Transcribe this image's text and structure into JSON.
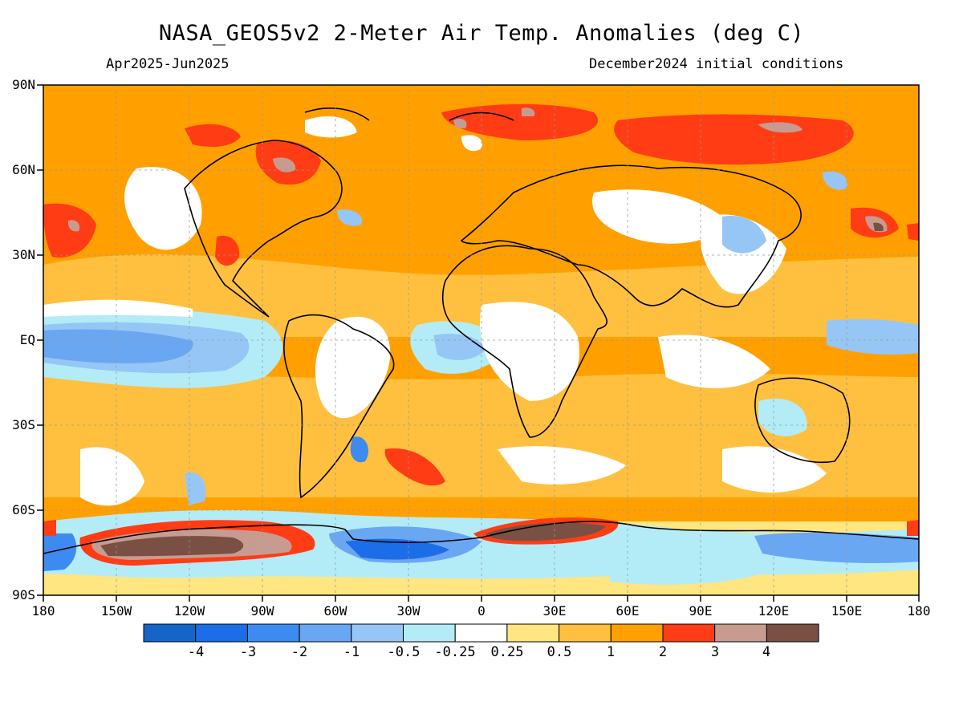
{
  "header": {
    "title": "NASA_GEOS5v2 2-Meter Air Temp. Anomalies (deg C)",
    "period": "Apr2025-Jun2025",
    "init": "December2024 initial conditions"
  },
  "axes": {
    "lat_ticks": [
      "90N",
      "60N",
      "30N",
      "EQ",
      "30S",
      "60S",
      "90S"
    ],
    "lon_ticks": [
      "180",
      "150W",
      "120W",
      "90W",
      "60W",
      "30W",
      "0",
      "30E",
      "60E",
      "90E",
      "120E",
      "150E",
      "180"
    ]
  },
  "colorbar": {
    "colors": [
      "#1565c8",
      "#1c6ee8",
      "#3d8bf0",
      "#6aa7f2",
      "#96c6f5",
      "#b3ecf7",
      "#ffffff",
      "#ffe680",
      "#ffc040",
      "#ffa000",
      "#ff3c14",
      "#c89b91",
      "#7a5045"
    ],
    "labels": [
      "-4",
      "-3",
      "-2",
      "-1",
      "-0.5",
      "-0.25",
      "0.25",
      "0.5",
      "1",
      "2",
      "3",
      "4"
    ]
  }
}
